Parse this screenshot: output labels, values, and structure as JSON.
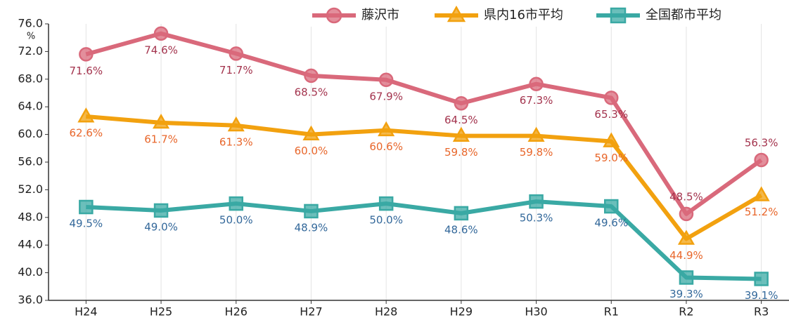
{
  "chart_data": {
    "type": "line",
    "y_label": "%",
    "categories": [
      "H24",
      "H25",
      "H26",
      "H27",
      "H28",
      "H29",
      "H30",
      "R1",
      "R2",
      "R3"
    ],
    "ylim": [
      36,
      76
    ],
    "yticks": [
      {
        "value": 36,
        "label": "36.0"
      },
      {
        "value": 40,
        "label": "40.0"
      },
      {
        "value": 44,
        "label": "44.0"
      },
      {
        "value": 48,
        "label": "48.0"
      },
      {
        "value": 52,
        "label": "52.0"
      },
      {
        "value": 56,
        "label": "56.0"
      },
      {
        "value": 60,
        "label": "60.0"
      },
      {
        "value": 64,
        "label": "64.0"
      },
      {
        "value": 68,
        "label": "68.0"
      },
      {
        "value": 72,
        "label": "72.0"
      },
      {
        "value": 76,
        "label": "76.0"
      }
    ],
    "legend": "top-right",
    "series": [
      {
        "name": "藤沢市",
        "color": "#d9697b",
        "marker": "circle",
        "label_color": "#a3334d",
        "values": [
          71.6,
          74.6,
          71.7,
          68.5,
          67.9,
          64.5,
          67.3,
          65.3,
          48.5,
          56.3
        ],
        "value_labels": [
          "71.6%",
          "74.6%",
          "71.7%",
          "68.5%",
          "67.9%",
          "64.5%",
          "67.3%",
          "65.3%",
          "48.5%",
          "56.3%"
        ]
      },
      {
        "name": "県内16市平均",
        "color": "#f2a10f",
        "marker": "triangle",
        "label_color": "#e8662a",
        "values": [
          62.6,
          61.7,
          61.3,
          60,
          60.6,
          59.8,
          59.8,
          59,
          44.9,
          51.2
        ],
        "value_labels": [
          "62.6%",
          "61.7%",
          "61.3%",
          "60.0%",
          "60.6%",
          "59.8%",
          "59.8%",
          "59.0%",
          "44.9%",
          "51.2%"
        ]
      },
      {
        "name": "全国都市平均",
        "color": "#3aa9a4",
        "marker": "square",
        "label_color": "#33689a",
        "values": [
          49.5,
          49,
          50,
          48.9,
          50,
          48.6,
          50.3,
          49.6,
          39.3,
          39.1
        ],
        "value_labels": [
          "49.5%",
          "49.0%",
          "50.0%",
          "48.9%",
          "50.0%",
          "48.6%",
          "50.3%",
          "49.6%",
          "39.3%",
          "39.1%"
        ]
      }
    ]
  }
}
